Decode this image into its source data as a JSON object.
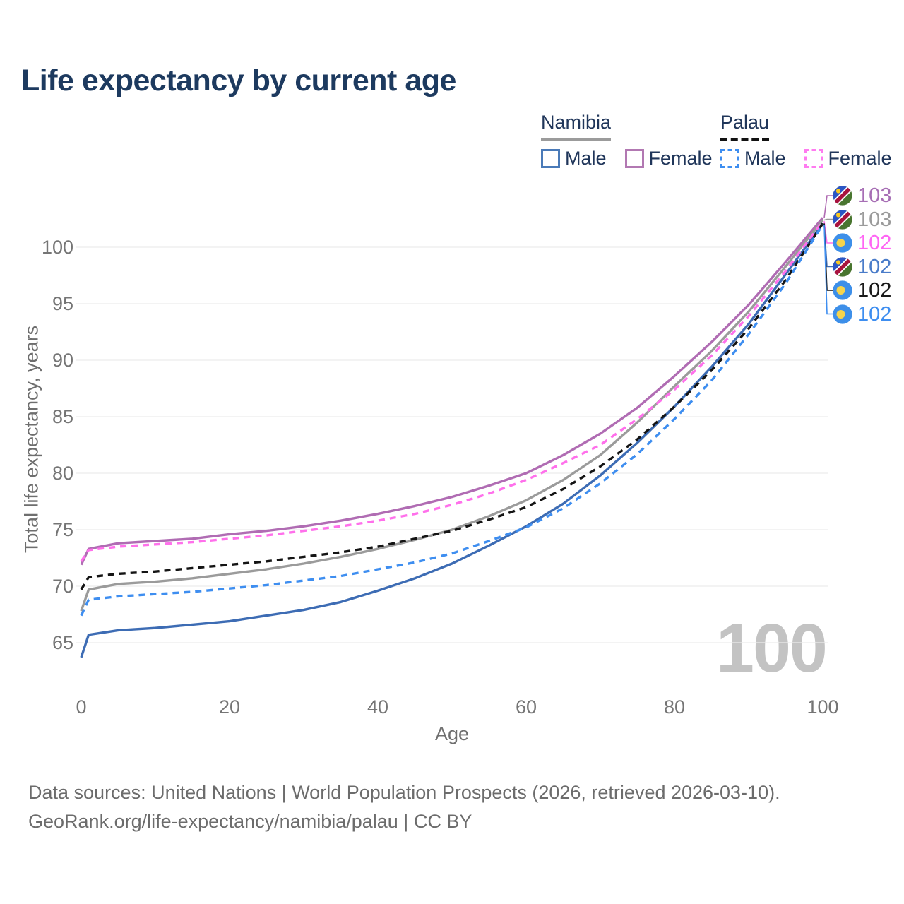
{
  "header": {
    "title": "Life expectancy by current age"
  },
  "legend": {
    "groups": [
      {
        "label": "Namibia",
        "line_style": "solid",
        "underline_color": "#9b9b9b",
        "items": [
          {
            "label": "Male",
            "color": "#3d6cb4"
          },
          {
            "label": "Female",
            "color": "#b06cb3"
          }
        ]
      },
      {
        "label": "Palau",
        "line_style": "dashed",
        "underline_color": "#121212",
        "items": [
          {
            "label": "Male",
            "color": "#3e8ef0"
          },
          {
            "label": "Female",
            "color": "#ff70eb"
          }
        ]
      }
    ]
  },
  "chart_data": {
    "type": "line",
    "title": "Life expectancy by current age",
    "xlabel": "Age",
    "ylabel": "Total life expectancy, years",
    "xlim": [
      0,
      100
    ],
    "ylim": [
      63,
      104
    ],
    "x_ticks": [
      0,
      20,
      40,
      60,
      80,
      100
    ],
    "y_ticks": [
      65,
      70,
      75,
      80,
      85,
      90,
      95,
      100
    ],
    "grid": "horizontal",
    "legend_position": "top-right",
    "age_counter": "100",
    "x": [
      0,
      1,
      5,
      10,
      15,
      20,
      25,
      30,
      35,
      40,
      45,
      50,
      55,
      60,
      65,
      70,
      75,
      80,
      85,
      90,
      95,
      100
    ],
    "series": [
      {
        "id": "namibia-female",
        "name": "Namibia Female",
        "country": "Namibia",
        "sex": "Female",
        "color": "#b06cb3",
        "dash": false,
        "end_label": "103",
        "values": [
          71.9,
          73.3,
          73.8,
          74.0,
          74.2,
          74.6,
          74.9,
          75.3,
          75.8,
          76.4,
          77.1,
          77.9,
          78.9,
          80.0,
          81.6,
          83.5,
          85.8,
          88.6,
          91.6,
          94.9,
          98.7,
          102.6
        ]
      },
      {
        "id": "namibia-both",
        "name": "Namibia",
        "country": "Namibia",
        "sex": "Both",
        "color": "#9b9b9b",
        "dash": false,
        "end_label": "103",
        "values": [
          67.8,
          69.7,
          70.2,
          70.4,
          70.7,
          71.1,
          71.5,
          72.0,
          72.6,
          73.3,
          74.1,
          75.0,
          76.2,
          77.6,
          79.4,
          81.6,
          84.5,
          87.7,
          90.8,
          94.3,
          98.3,
          102.4
        ]
      },
      {
        "id": "namibia-male",
        "name": "Namibia Male",
        "country": "Namibia",
        "sex": "Male",
        "color": "#3d6cb4",
        "dash": false,
        "end_label": "102",
        "values": [
          63.7,
          65.7,
          66.1,
          66.3,
          66.6,
          66.9,
          67.4,
          67.9,
          68.6,
          69.6,
          70.7,
          72.0,
          73.6,
          75.3,
          77.3,
          79.8,
          82.7,
          85.9,
          89.4,
          93.2,
          97.6,
          102.1
        ]
      },
      {
        "id": "palau-female",
        "name": "Palau Female",
        "country": "Palau",
        "sex": "Female",
        "color": "#ff70eb",
        "dash": true,
        "end_label": "102",
        "values": [
          72.2,
          73.2,
          73.5,
          73.7,
          73.9,
          74.2,
          74.5,
          74.9,
          75.3,
          75.8,
          76.4,
          77.2,
          78.2,
          79.4,
          80.9,
          82.5,
          84.8,
          87.4,
          90.4,
          93.9,
          97.9,
          102.3
        ]
      },
      {
        "id": "palau-both",
        "name": "Palau",
        "country": "Palau",
        "sex": "Both",
        "color": "#141414",
        "dash": true,
        "end_label": "102",
        "values": [
          69.7,
          70.8,
          71.1,
          71.3,
          71.6,
          71.9,
          72.2,
          72.6,
          73.0,
          73.5,
          74.2,
          74.9,
          75.9,
          77.0,
          78.6,
          80.6,
          83.0,
          85.9,
          89.1,
          92.8,
          97.1,
          102.1
        ]
      },
      {
        "id": "palau-male",
        "name": "Palau Male",
        "country": "Palau",
        "sex": "Male",
        "color": "#3e8ef0",
        "dash": true,
        "end_label": "102",
        "values": [
          67.4,
          68.8,
          69.1,
          69.3,
          69.5,
          69.8,
          70.1,
          70.5,
          70.9,
          71.5,
          72.1,
          72.9,
          74.0,
          75.2,
          76.9,
          79.1,
          81.7,
          84.8,
          88.2,
          92.3,
          96.8,
          102.0
        ]
      }
    ],
    "end_labels": [
      {
        "value": "103",
        "flag": "namibia",
        "color": "#a76fb5",
        "series_index": 0
      },
      {
        "value": "103",
        "flag": "namibia",
        "color": "#9b9b9b",
        "series_index": 1
      },
      {
        "value": "102",
        "flag": "palau",
        "color": "#ff66f4",
        "series_index": 3
      },
      {
        "value": "102",
        "flag": "namibia",
        "color": "#4a7cc9",
        "series_index": 2
      },
      {
        "value": "102",
        "flag": "palau",
        "color": "#1a1a1a",
        "series_index": 4
      },
      {
        "value": "102",
        "flag": "palau",
        "color": "#3e8ef0",
        "series_index": 5
      }
    ]
  },
  "footer": {
    "line1": "Data sources: United Nations | World Population Prospects (2026, retrieved 2026-03-10).",
    "line2": "GeoRank.org/life-expectancy/namibia/palau | CC BY"
  }
}
